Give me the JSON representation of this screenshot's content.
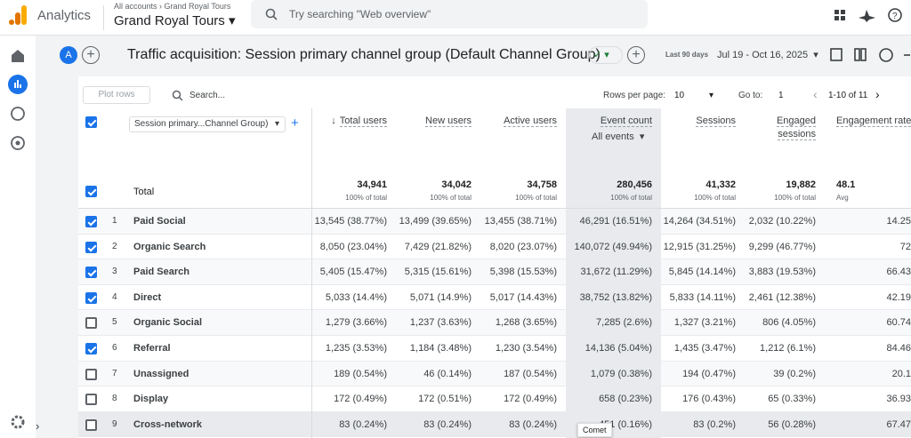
{
  "header": {
    "product": "Analytics",
    "breadcrumb": [
      "All accounts",
      "Grand Royal Tours"
    ],
    "property": "Grand Royal Tours",
    "search_placeholder": "Try searching \"Web overview\""
  },
  "report": {
    "avatar": "A",
    "title": "Traffic acquisition: Session primary channel group (Default Channel Group)",
    "date_label": "Last 90 days",
    "date_range": "Jul 19 - Oct 16, 2025"
  },
  "toolbar": {
    "plot_rows": "Plot rows",
    "search": "Search...",
    "rows_per_page_label": "Rows per page:",
    "rows_per_page": "10",
    "goto_label": "Go to:",
    "goto": "1",
    "range": "1-10 of 11"
  },
  "table": {
    "dimension": "Session primary...Channel Group)",
    "event_filter": "All events",
    "columns": [
      {
        "label": "Total users",
        "sorted": true
      },
      {
        "label": "New users",
        "sorted": false
      },
      {
        "label": "Active users",
        "sorted": false
      },
      {
        "label": "Event count",
        "sorted": false
      },
      {
        "label": "Sessions",
        "sorted": false
      },
      {
        "label": "Engaged sessions",
        "sorted": false
      },
      {
        "label": "Engagement rate",
        "sorted": false
      }
    ],
    "total": {
      "label": "Total",
      "checked": true,
      "values": [
        "34,941",
        "34,042",
        "34,758",
        "280,456",
        "41,332",
        "19,882",
        "48.1"
      ],
      "notes": [
        "100% of total",
        "100% of total",
        "100% of total",
        "100% of total",
        "100% of total",
        "100% of total",
        "Avg"
      ]
    },
    "rows": [
      {
        "index": 1,
        "name": "Paid Social",
        "checked": true,
        "cells": [
          "13,545 (38.77%)",
          "13,499 (39.65%)",
          "13,455 (38.71%)",
          "46,291 (16.51%)",
          "14,264 (34.51%)",
          "2,032 (10.22%)",
          "14.25"
        ]
      },
      {
        "index": 2,
        "name": "Organic Search",
        "checked": true,
        "cells": [
          "8,050 (23.04%)",
          "7,429 (21.82%)",
          "8,020 (23.07%)",
          "140,072 (49.94%)",
          "12,915 (31.25%)",
          "9,299 (46.77%)",
          "72"
        ]
      },
      {
        "index": 3,
        "name": "Paid Search",
        "checked": true,
        "cells": [
          "5,405 (15.47%)",
          "5,315 (15.61%)",
          "5,398 (15.53%)",
          "31,672 (11.29%)",
          "5,845 (14.14%)",
          "3,883 (19.53%)",
          "66.43"
        ]
      },
      {
        "index": 4,
        "name": "Direct",
        "checked": true,
        "cells": [
          "5,033 (14.4%)",
          "5,071 (14.9%)",
          "5,017 (14.43%)",
          "38,752 (13.82%)",
          "5,833 (14.11%)",
          "2,461 (12.38%)",
          "42.19"
        ]
      },
      {
        "index": 5,
        "name": "Organic Social",
        "checked": false,
        "cells": [
          "1,279 (3.66%)",
          "1,237 (3.63%)",
          "1,268 (3.65%)",
          "7,285 (2.6%)",
          "1,327 (3.21%)",
          "806 (4.05%)",
          "60.74"
        ]
      },
      {
        "index": 6,
        "name": "Referral",
        "checked": true,
        "cells": [
          "1,235 (3.53%)",
          "1,184 (3.48%)",
          "1,230 (3.54%)",
          "14,136 (5.04%)",
          "1,435 (3.47%)",
          "1,212 (6.1%)",
          "84.46"
        ]
      },
      {
        "index": 7,
        "name": "Unassigned",
        "checked": false,
        "cells": [
          "189 (0.54%)",
          "46 (0.14%)",
          "187 (0.54%)",
          "1,079 (0.38%)",
          "194 (0.47%)",
          "39 (0.2%)",
          "20.1"
        ]
      },
      {
        "index": 8,
        "name": "Display",
        "checked": false,
        "cells": [
          "172 (0.49%)",
          "172 (0.51%)",
          "172 (0.49%)",
          "658 (0.23%)",
          "176 (0.43%)",
          "65 (0.33%)",
          "36.93"
        ]
      },
      {
        "index": 9,
        "name": "Cross-network",
        "checked": false,
        "cells": [
          "83 (0.24%)",
          "83 (0.24%)",
          "83 (0.24%)",
          "451 (0.16%)",
          "83 (0.2%)",
          "56 (0.28%)",
          "67.47"
        ]
      }
    ]
  },
  "tooltip": "Comet"
}
